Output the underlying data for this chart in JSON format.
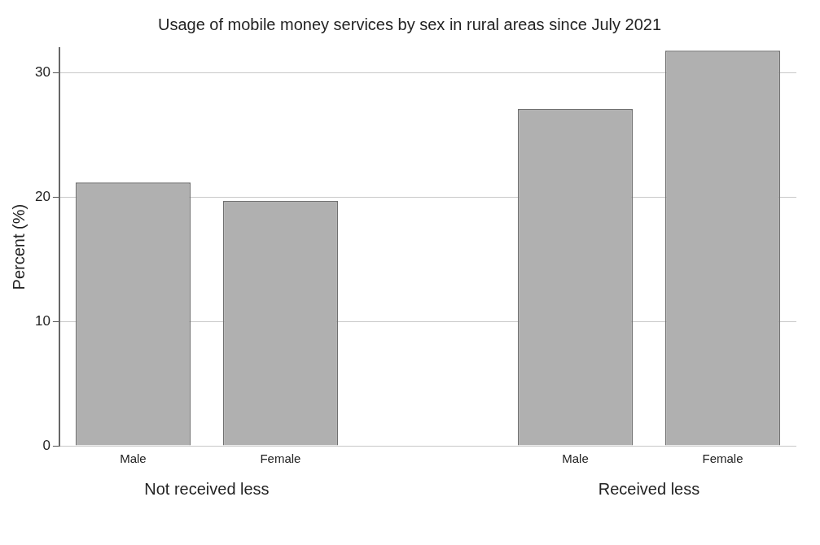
{
  "chart_data": {
    "type": "bar",
    "title": "Usage of mobile money services by sex in rural areas since July 2021",
    "ylabel": "Percent (%)",
    "categories": [
      "Male",
      "Female",
      null,
      "Male",
      "Female"
    ],
    "values": [
      21.2,
      19.7,
      null,
      27.1,
      31.8
    ],
    "color": "#b0b0b0",
    "ylim": [
      0,
      32
    ],
    "yticks": [
      0,
      10,
      20,
      30
    ],
    "grid": "y",
    "legend": false,
    "annotations": [
      "Not received less",
      "Received less"
    ]
  }
}
